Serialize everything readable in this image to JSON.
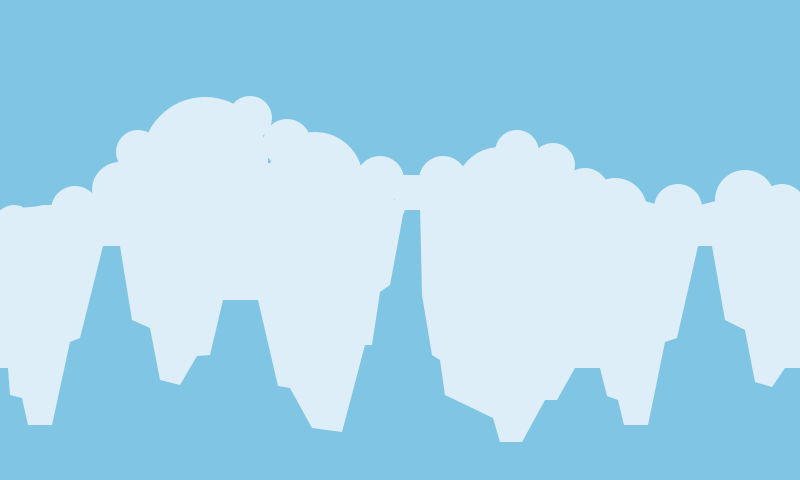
{
  "scene": {
    "colors": {
      "sky": "#80c6e4",
      "cloud": "#ddeef8"
    },
    "layers": [
      "sky-background",
      "cloud-mass",
      "icicle-drips"
    ]
  }
}
